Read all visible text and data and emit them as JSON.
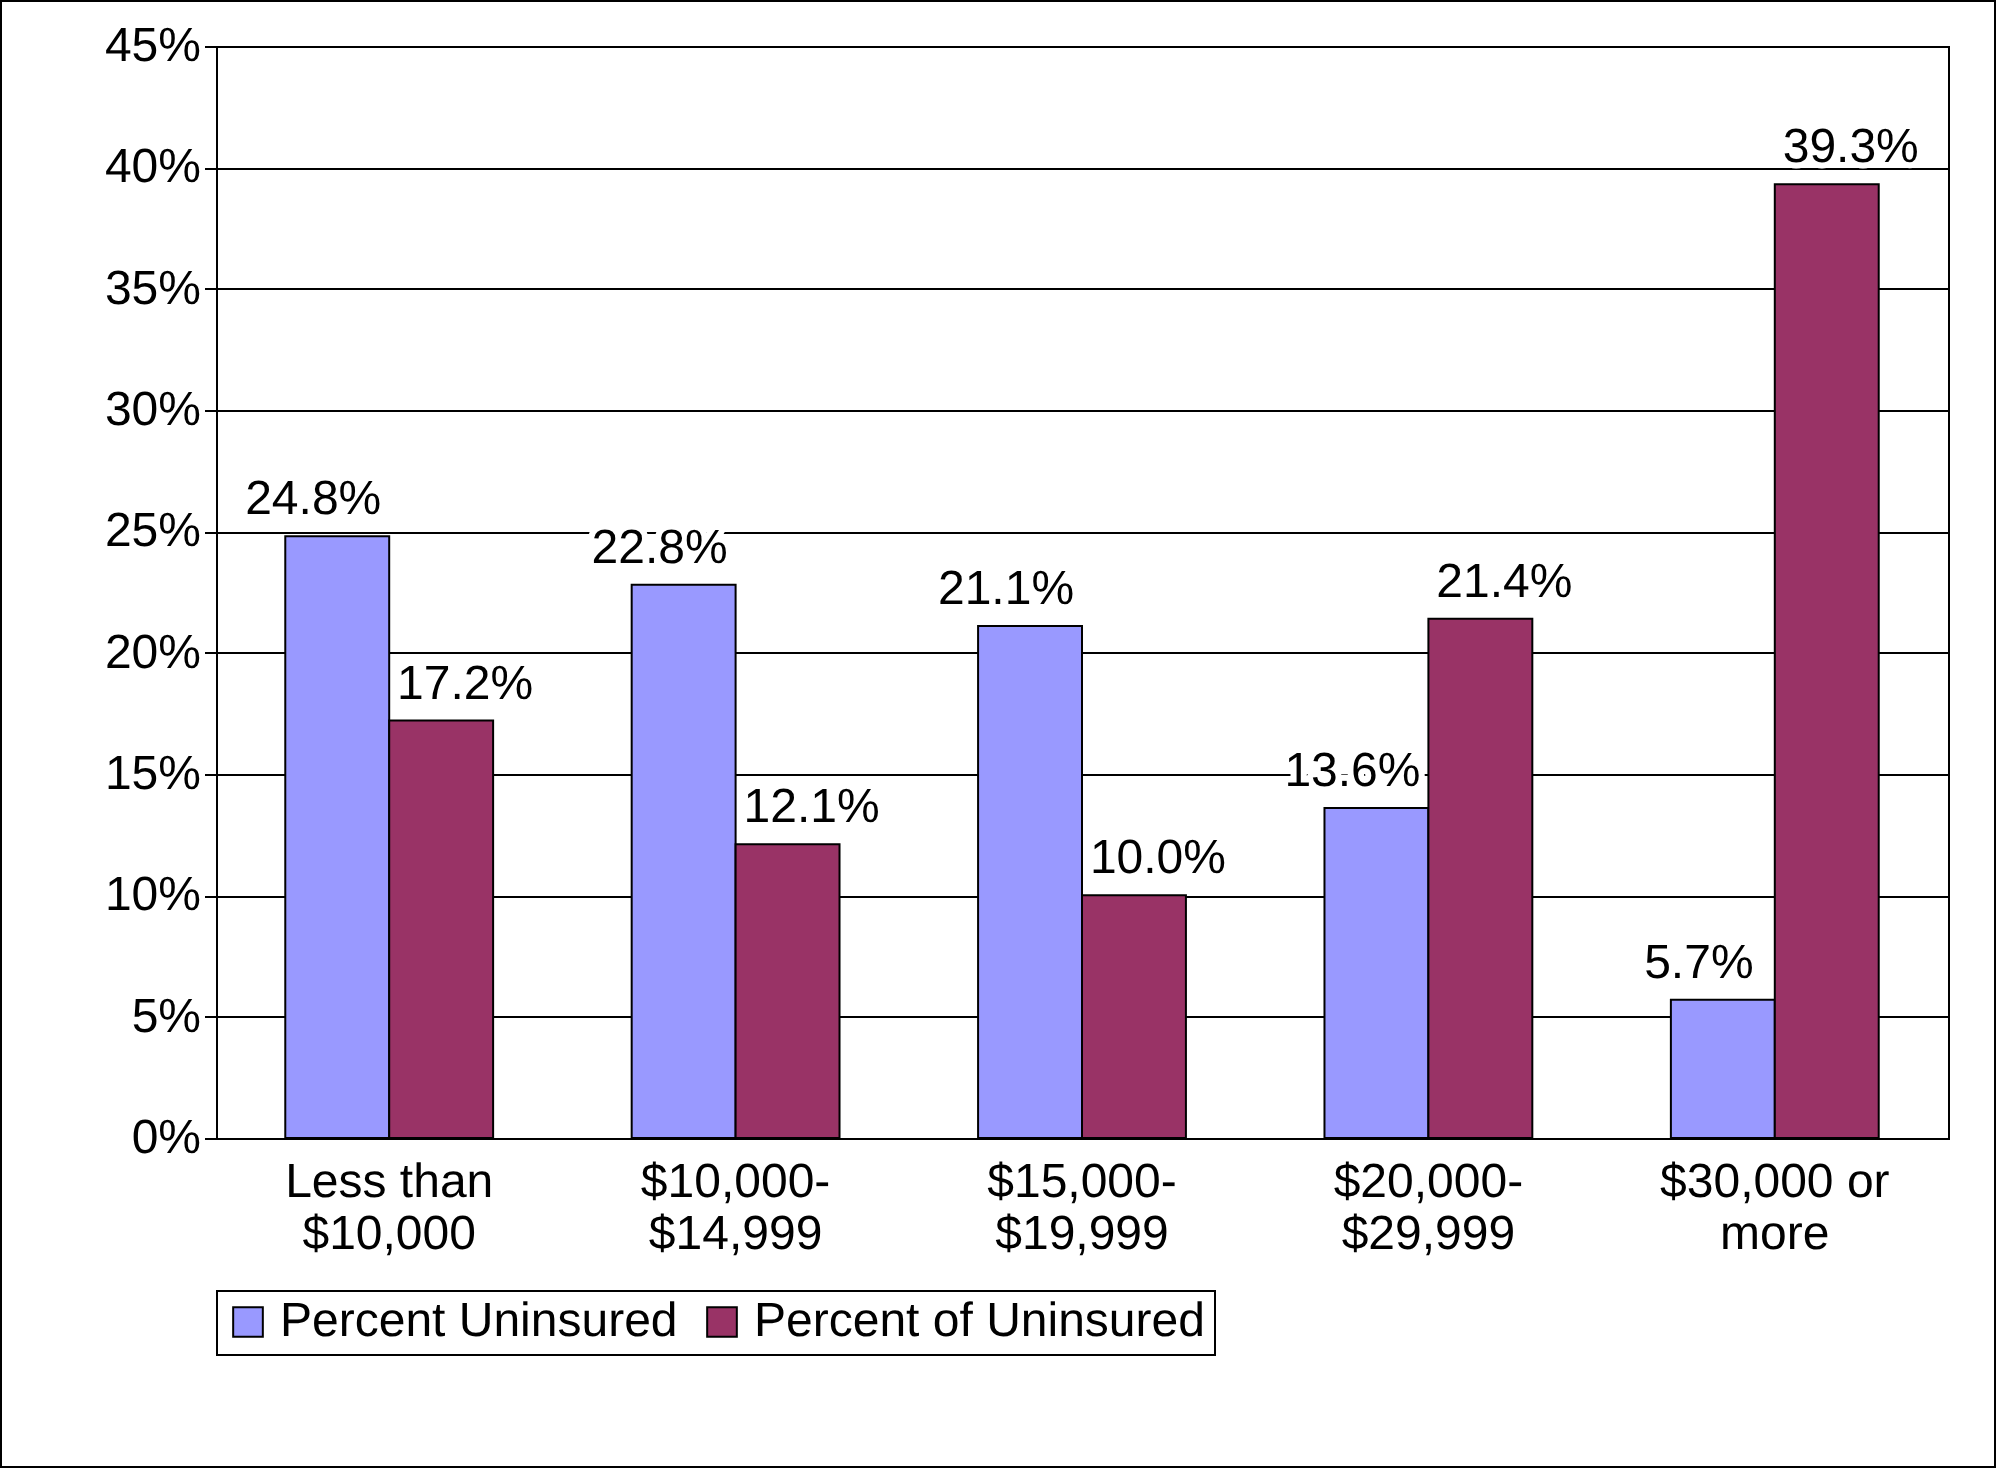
{
  "chart_data": {
    "type": "bar",
    "categories": [
      "Less than\n$10,000",
      "$10,000-\n$14,999",
      "$15,000-\n$19,999",
      "$20,000-\n$29,999",
      "$30,000 or\nmore"
    ],
    "series": [
      {
        "name": "Percent Uninsured",
        "color": "#9999ff",
        "values": [
          24.8,
          22.8,
          21.1,
          13.6,
          5.7
        ],
        "value_labels": [
          "24.8%",
          "22.8%",
          "21.1%",
          "13.6%",
          "5.7%"
        ]
      },
      {
        "name": "Percent of Uninsured",
        "color": "#993366",
        "values": [
          17.2,
          12.1,
          10.0,
          21.4,
          39.3
        ],
        "value_labels": [
          "17.2%",
          "12.1%",
          "10.0%",
          "21.4%",
          "39.3%"
        ]
      }
    ],
    "ylim": [
      0,
      45
    ],
    "yticks": [
      {
        "value": 0,
        "label": "0%"
      },
      {
        "value": 5,
        "label": "5%"
      },
      {
        "value": 10,
        "label": "10%"
      },
      {
        "value": 15,
        "label": "15%"
      },
      {
        "value": 20,
        "label": "20%"
      },
      {
        "value": 25,
        "label": "25%"
      },
      {
        "value": 30,
        "label": "30%"
      },
      {
        "value": 35,
        "label": "35%"
      },
      {
        "value": 40,
        "label": "40%"
      },
      {
        "value": 45,
        "label": "45%"
      }
    ],
    "grid": "y",
    "legend": "bottom"
  }
}
